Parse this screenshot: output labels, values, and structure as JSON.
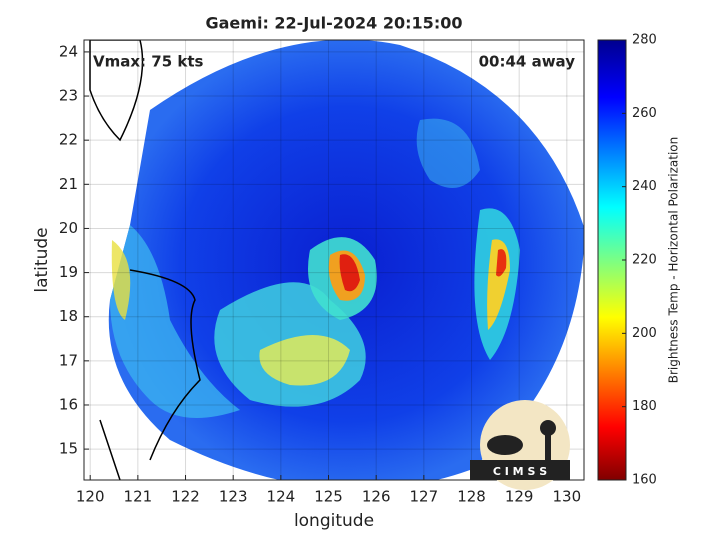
{
  "chart_data": {
    "type": "image",
    "title": "Gaemi: 22-Jul-2024 20:15:00",
    "xlabel": "longitude",
    "ylabel": "latitude",
    "annotations": [
      "Vmax: 75 kts",
      "00:44 away"
    ],
    "logo": "C I M S S",
    "xlim": [
      119.87,
      130.36
    ],
    "xticks": [
      120,
      121,
      122,
      123,
      124,
      125,
      126,
      127,
      128,
      129,
      130
    ],
    "ylim": [
      14.3,
      24.27
    ],
    "yticks": [
      15,
      16,
      17,
      18,
      19,
      20,
      21,
      22,
      23,
      24
    ],
    "grid": true,
    "colorbar": {
      "label": "Brightness Temp - Horizontal Polarization",
      "lim": [
        160,
        280
      ],
      "ticks": [
        160,
        180,
        200,
        220,
        240,
        260,
        280
      ]
    }
  }
}
